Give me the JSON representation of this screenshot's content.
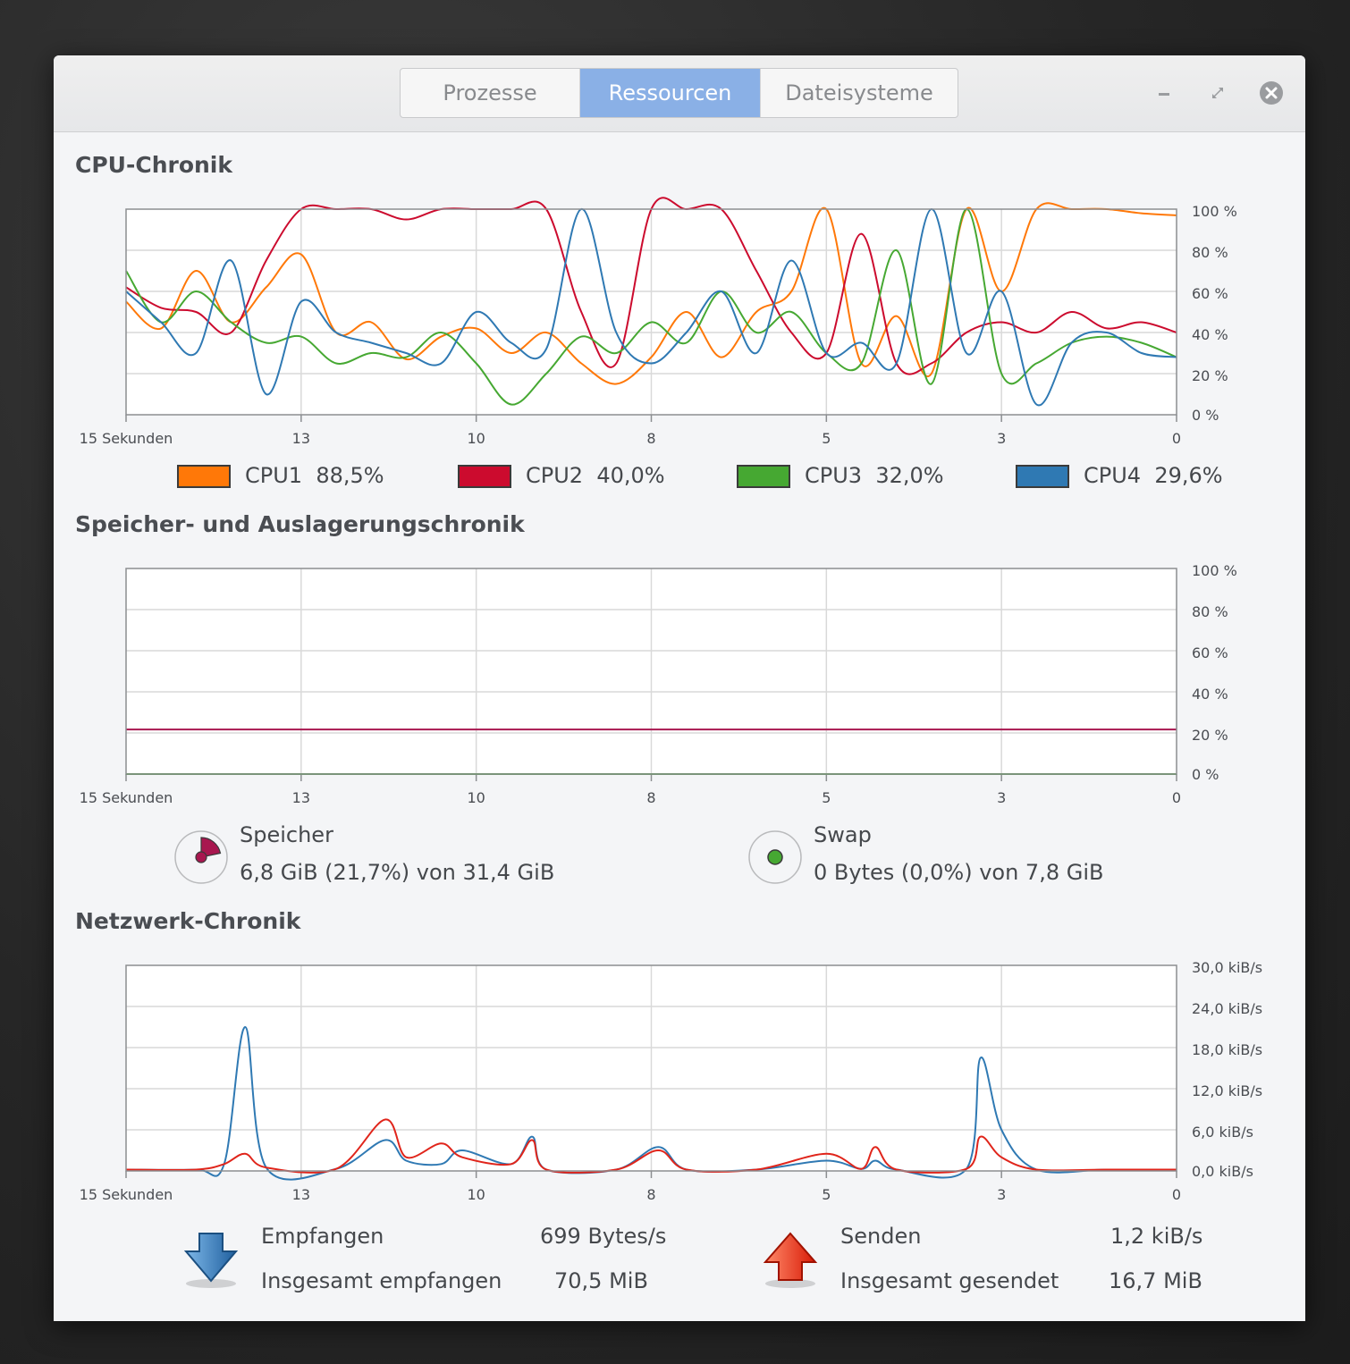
{
  "tabs": [
    {
      "label": "Prozesse",
      "active": false
    },
    {
      "label": "Ressourcen",
      "active": true
    },
    {
      "label": "Dateisysteme",
      "active": false
    }
  ],
  "window_controls": [
    "minimize-icon",
    "maximize-icon",
    "close-icon"
  ],
  "sections": {
    "cpu": "CPU-Chronik",
    "memory": "Speicher- und Auslagerungschronik",
    "network": "Netzwerk-Chronik"
  },
  "x_ticks": [
    "15 Sekunden",
    "13",
    "10",
    "8",
    "5",
    "3",
    "0"
  ],
  "cpu_legend": [
    {
      "name": "CPU1",
      "value": "88,5%",
      "color": "#ff7808"
    },
    {
      "name": "CPU2",
      "value": "40,0%",
      "color": "#cc0b2e"
    },
    {
      "name": "CPU3",
      "value": "32,0%",
      "color": "#46a832"
    },
    {
      "name": "CPU4",
      "value": "29,6%",
      "color": "#2f79b3"
    }
  ],
  "memory": {
    "label": "Speicher",
    "value": "6,8 GiB (21,7%) von 31,4 GiB",
    "color": "#a8174f"
  },
  "swap": {
    "label": "Swap",
    "value": "0 Bytes (0,0%) von 7,8 GiB",
    "color": "#46a832"
  },
  "network": {
    "received_label": "Empfangen",
    "received_value": "699 Bytes/s",
    "total_received_label": "Insgesamt empfangen",
    "total_received_value": "70,5 MiB",
    "sent_label": "Senden",
    "sent_value": "1,2 kiB/s",
    "total_sent_label": "Insgesamt gesendet",
    "total_sent_value": "16,7 MiB"
  },
  "chart_data": [
    {
      "type": "line",
      "title": "CPU-Chronik",
      "x_axis": {
        "direction": "seconds ago",
        "range": [
          15,
          0
        ],
        "ticks": [
          "15 Sekunden",
          "13",
          "10",
          "8",
          "5",
          "3",
          "0"
        ]
      },
      "y_axis": {
        "range": [
          0,
          100
        ],
        "ticks": [
          "0 %",
          "20 %",
          "40 %",
          "60 %",
          "80 %",
          "100 %"
        ],
        "side": "right"
      },
      "grid": true,
      "x": [
        15,
        14.5,
        14,
        13.5,
        13,
        12.5,
        12,
        11.5,
        11,
        10.5,
        10,
        9.5,
        9,
        8.5,
        8,
        7.5,
        7,
        6.5,
        6,
        5.5,
        5,
        4.5,
        4,
        3.5,
        3,
        2.5,
        2,
        1.5,
        1,
        0.5,
        0
      ],
      "series": [
        {
          "name": "CPU1",
          "color": "#ff7808",
          "values": [
            55,
            42,
            70,
            45,
            62,
            78,
            40,
            45,
            27,
            38,
            42,
            30,
            40,
            25,
            15,
            28,
            50,
            28,
            50,
            60,
            100,
            25,
            48,
            20,
            100,
            60,
            100,
            100,
            100,
            98,
            97
          ]
        },
        {
          "name": "CPU2",
          "color": "#cc0b2e",
          "values": [
            62,
            52,
            50,
            40,
            75,
            100,
            100,
            100,
            95,
            100,
            100,
            100,
            100,
            50,
            25,
            100,
            100,
            100,
            70,
            40,
            30,
            88,
            25,
            25,
            40,
            45,
            40,
            50,
            42,
            45,
            40
          ]
        },
        {
          "name": "CPU3",
          "color": "#46a832",
          "values": [
            70,
            45,
            60,
            45,
            35,
            38,
            25,
            30,
            28,
            40,
            25,
            5,
            20,
            38,
            30,
            45,
            35,
            60,
            40,
            50,
            30,
            25,
            80,
            15,
            100,
            20,
            25,
            35,
            38,
            35,
            28
          ]
        },
        {
          "name": "CPU4",
          "color": "#2f79b3",
          "values": [
            60,
            45,
            30,
            75,
            10,
            55,
            40,
            35,
            30,
            25,
            50,
            35,
            32,
            100,
            40,
            25,
            40,
            60,
            30,
            75,
            30,
            35,
            25,
            100,
            30,
            60,
            5,
            35,
            40,
            30,
            28
          ]
        }
      ]
    },
    {
      "type": "line",
      "title": "Speicher- und Auslagerungschronik",
      "x_axis": {
        "direction": "seconds ago",
        "range": [
          15,
          0
        ],
        "ticks": [
          "15 Sekunden",
          "13",
          "10",
          "8",
          "5",
          "3",
          "0"
        ]
      },
      "y_axis": {
        "range": [
          0,
          100
        ],
        "ticks": [
          "0 %",
          "20 %",
          "40 %",
          "60 %",
          "80 %",
          "100 %"
        ],
        "side": "right"
      },
      "grid": true,
      "x": [
        15,
        0
      ],
      "series": [
        {
          "name": "Speicher",
          "color": "#a8174f",
          "values": [
            21.7,
            21.7
          ]
        },
        {
          "name": "Swap",
          "color": "#46a832",
          "values": [
            0,
            0
          ]
        }
      ]
    },
    {
      "type": "line",
      "title": "Netzwerk-Chronik",
      "x_axis": {
        "direction": "seconds ago",
        "range": [
          15,
          0
        ],
        "ticks": [
          "15 Sekunden",
          "13",
          "10",
          "8",
          "5",
          "3",
          "0"
        ]
      },
      "y_axis": {
        "range": [
          0,
          30
        ],
        "unit": "kiB/s",
        "ticks": [
          "0,0 kiB/s",
          "6,0 kiB/s",
          "12,0 kiB/s",
          "18,0 kiB/s",
          "24,0 kiB/s",
          "30,0 kiB/s"
        ],
        "side": "right"
      },
      "grid": true,
      "x": [
        15,
        14,
        13.6,
        13.3,
        13,
        12,
        11.3,
        11,
        10.5,
        10.2,
        9.5,
        9.2,
        9,
        8,
        7.4,
        7,
        6,
        5,
        4.5,
        4.3,
        4,
        3,
        2.8,
        2.5,
        2,
        1,
        0
      ],
      "series": [
        {
          "name": "Empfangen",
          "color": "#2f79b3",
          "values": [
            0.2,
            0.2,
            1,
            21,
            0.5,
            0.3,
            4.5,
            1.5,
            1,
            3,
            1,
            5,
            0.2,
            0.2,
            3.5,
            0.2,
            0.2,
            1.5,
            0.3,
            1.5,
            0.2,
            0.3,
            16.5,
            6,
            0.2,
            0.2,
            0.2
          ]
        },
        {
          "name": "Senden",
          "color": "#e0251b",
          "values": [
            0.2,
            0.2,
            1,
            2.5,
            0.5,
            0.3,
            7.5,
            2,
            4,
            2,
            1,
            4.5,
            0.2,
            0.2,
            3,
            0.2,
            0.2,
            2.5,
            0.3,
            3.5,
            0.2,
            0.3,
            5,
            2,
            0.2,
            0.2,
            0.2
          ]
        }
      ]
    }
  ]
}
